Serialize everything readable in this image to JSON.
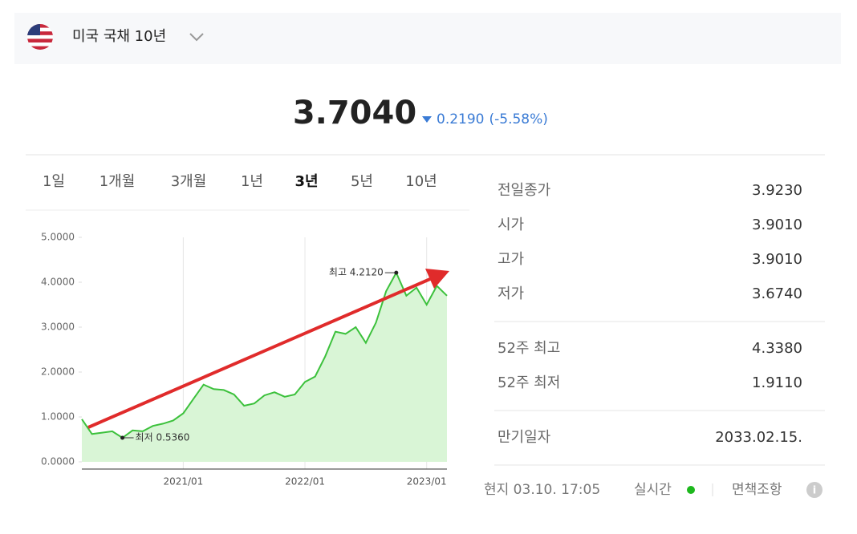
{
  "header": {
    "title": "미국 국채 10년"
  },
  "quote": {
    "price": "3.7040",
    "change": "0.2190",
    "change_pct": "(-5.58%)"
  },
  "tabs": {
    "items": [
      "1일",
      "1개월",
      "3개월",
      "1년",
      "3년",
      "5년",
      "10년"
    ],
    "active": 4
  },
  "chart_data": {
    "type": "line",
    "x": [
      "2020/03",
      "2020/04",
      "2020/05",
      "2020/06",
      "2020/07",
      "2020/08",
      "2020/09",
      "2020/10",
      "2020/11",
      "2020/12",
      "2021/01",
      "2021/02",
      "2021/03",
      "2021/04",
      "2021/05",
      "2021/06",
      "2021/07",
      "2021/08",
      "2021/09",
      "2021/10",
      "2021/11",
      "2021/12",
      "2022/01",
      "2022/02",
      "2022/03",
      "2022/04",
      "2022/05",
      "2022/06",
      "2022/07",
      "2022/08",
      "2022/09",
      "2022/10",
      "2022/11",
      "2022/12",
      "2023/01",
      "2023/02",
      "2023/03"
    ],
    "series": [
      {
        "color": "#3cc13c",
        "fill": "#d9f5d6",
        "values": [
          0.95,
          0.62,
          0.65,
          0.68,
          0.536,
          0.7,
          0.68,
          0.8,
          0.85,
          0.92,
          1.08,
          1.4,
          1.72,
          1.62,
          1.6,
          1.5,
          1.25,
          1.3,
          1.48,
          1.55,
          1.45,
          1.5,
          1.78,
          1.9,
          2.35,
          2.9,
          2.85,
          3.0,
          2.65,
          3.1,
          3.8,
          4.212,
          3.7,
          3.88,
          3.5,
          3.92,
          3.7
        ]
      }
    ],
    "xlim": [
      "2020/03",
      "2023/03"
    ],
    "xticks": [
      "2021/01",
      "2022/01",
      "2023/01"
    ],
    "ylim": [
      0,
      5
    ],
    "yticks": [
      {
        "value": 0,
        "label": "0.0000"
      },
      {
        "value": 1,
        "label": "1.0000"
      },
      {
        "value": 2,
        "label": "2.0000"
      },
      {
        "value": 3,
        "label": "3.0000"
      },
      {
        "value": 4,
        "label": "4.0000"
      },
      {
        "value": 5,
        "label": "5.0000"
      }
    ],
    "grid": true,
    "annotations": [
      {
        "text": "최고 4.2120",
        "x": "2022/10",
        "y": 4.212,
        "side": "left"
      },
      {
        "text": "최저 0.5360",
        "x": "2020/07",
        "y": 0.536,
        "side": "right"
      }
    ]
  },
  "stats": {
    "groups": [
      [
        {
          "label": "전일종가",
          "value": "3.9230"
        },
        {
          "label": "시가",
          "value": "3.9010"
        },
        {
          "label": "고가",
          "value": "3.9010"
        },
        {
          "label": "저가",
          "value": "3.6740"
        }
      ],
      [
        {
          "label": "52주 최고",
          "value": "4.3380"
        },
        {
          "label": "52주 최저",
          "value": "1.9110"
        }
      ],
      [
        {
          "label": "만기일자",
          "value": "2033.02.15."
        }
      ]
    ]
  },
  "footer": {
    "time": "현지 03.10. 17:05",
    "status": "실시간",
    "disclaimer": "면책조항"
  }
}
